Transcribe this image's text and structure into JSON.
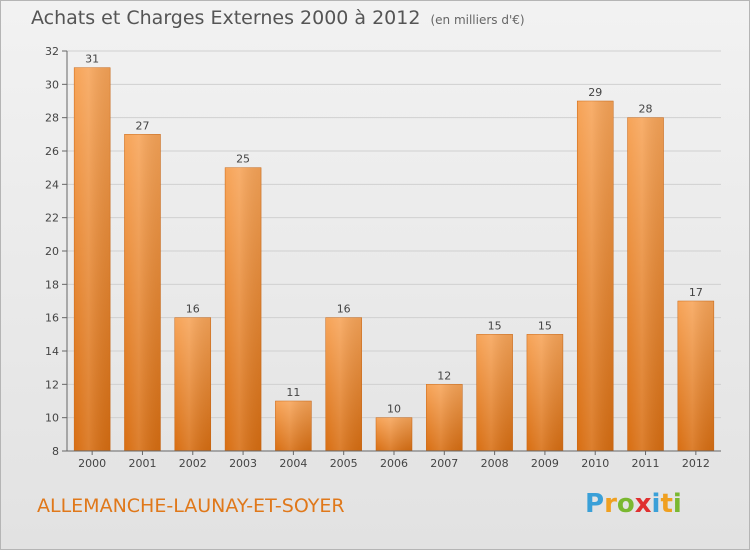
{
  "header": {
    "title": "Achats et Charges Externes 2000 à 2012",
    "subtitle": "(en milliers d'€)"
  },
  "footer": {
    "commune": "ALLEMANCHE-LAUNAY-ET-SOYER",
    "logo_letters": [
      "P",
      "r",
      "o",
      "x",
      "i",
      "t",
      "i"
    ],
    "logo_colors": [
      "#3aa0d8",
      "#f0a020",
      "#7ab830",
      "#e03030",
      "#3aa0d8",
      "#f0a020",
      "#7ab830"
    ]
  },
  "chart_data": {
    "type": "bar",
    "title": "Achats et Charges Externes 2000 à 2012",
    "subtitle": "(en milliers d'€)",
    "categories": [
      "2000",
      "2001",
      "2002",
      "2003",
      "2004",
      "2005",
      "2006",
      "2007",
      "2008",
      "2009",
      "2010",
      "2011",
      "2012"
    ],
    "values": [
      31,
      27,
      16,
      25,
      11,
      16,
      10,
      12,
      15,
      15,
      29,
      28,
      17
    ],
    "ylim": [
      8,
      32
    ],
    "yticks": [
      8,
      10,
      12,
      14,
      16,
      18,
      20,
      22,
      24,
      26,
      28,
      30,
      32
    ],
    "grid": true,
    "bar_color_top": "#f7a458",
    "bar_color_bottom": "#d86e12",
    "axis_color": "#666666"
  }
}
